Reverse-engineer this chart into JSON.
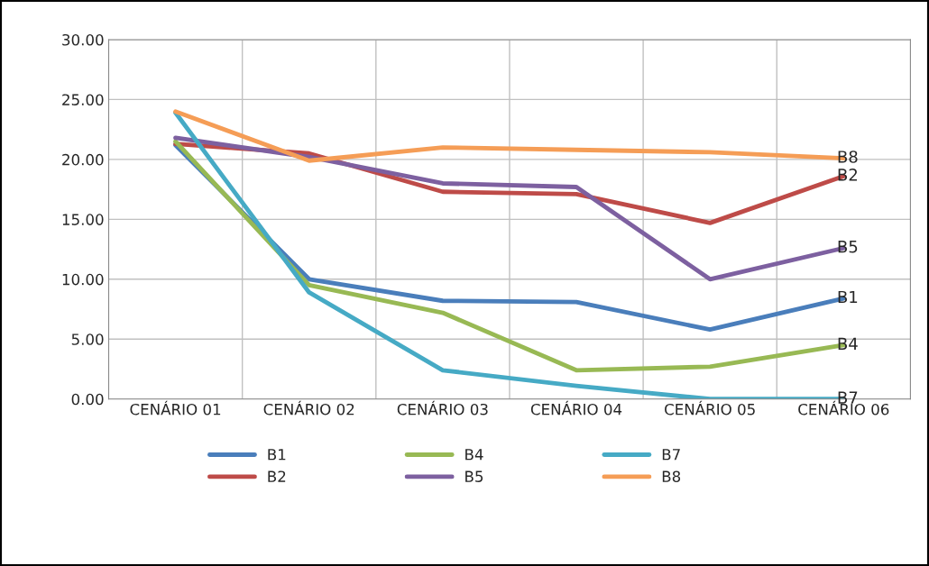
{
  "chart_data": {
    "type": "line",
    "categories": [
      "CENÁRIO 01",
      "CENÁRIO 02",
      "CENÁRIO 03",
      "CENÁRIO 04",
      "CENÁRIO 05",
      "CENÁRIO 06"
    ],
    "series": [
      {
        "name": "B1",
        "color": "#4a7ebb",
        "values": [
          21.2,
          10.0,
          8.2,
          8.1,
          5.8,
          8.4
        ]
      },
      {
        "name": "B2",
        "color": "#be4b48",
        "values": [
          21.3,
          20.5,
          17.3,
          17.1,
          14.7,
          18.6
        ]
      },
      {
        "name": "B4",
        "color": "#98b954",
        "values": [
          21.5,
          9.5,
          7.2,
          2.4,
          2.7,
          4.5
        ]
      },
      {
        "name": "B5",
        "color": "#7d60a0",
        "values": [
          21.8,
          20.2,
          18.0,
          17.7,
          10.0,
          12.6
        ]
      },
      {
        "name": "B7",
        "color": "#46aac5",
        "values": [
          23.9,
          8.9,
          2.4,
          1.1,
          0.0,
          0.0
        ]
      },
      {
        "name": "B8",
        "color": "#f59d56",
        "values": [
          24.0,
          19.9,
          21.0,
          20.8,
          20.6,
          20.1
        ]
      }
    ],
    "ylim": [
      0,
      30
    ],
    "yticks": [
      {
        "value": 0,
        "label": "0.00"
      },
      {
        "value": 5,
        "label": "5.00"
      },
      {
        "value": 10,
        "label": "10.00"
      },
      {
        "value": 15,
        "label": "15.00"
      },
      {
        "value": 20,
        "label": "20.00"
      },
      {
        "value": 25,
        "label": "25.00"
      },
      {
        "value": 30,
        "label": "30.00"
      }
    ],
    "grid": true,
    "legend": "bottom",
    "marker": "none",
    "line_style": "solid"
  }
}
